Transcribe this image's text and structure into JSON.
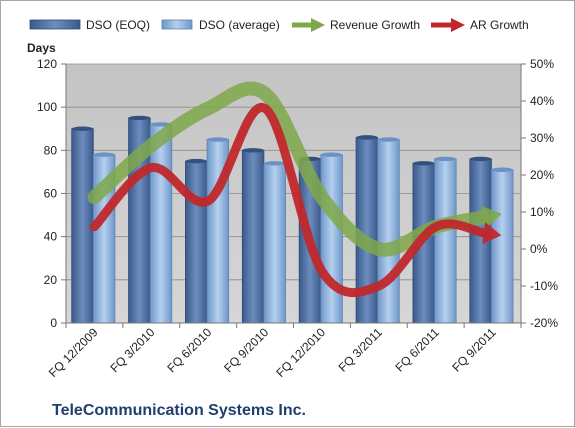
{
  "chart_data": {
    "type": "bar",
    "categories": [
      "FQ 12/2009",
      "FQ 3/2010",
      "FQ 6/2010",
      "FQ 9/2010",
      "FQ 12/2010",
      "FQ 3/2011",
      "FQ 6/2011",
      "FQ 9/2011"
    ],
    "series": [
      {
        "name": "DSO (EOQ)",
        "type": "bar",
        "axis": "left",
        "color": "#4f6fa3",
        "values": [
          90,
          95,
          75,
          80,
          76,
          86,
          74,
          76
        ]
      },
      {
        "name": "DSO (average)",
        "type": "bar",
        "axis": "left",
        "color": "#8eb4e3",
        "values": [
          78,
          92,
          85,
          74,
          78,
          85,
          76,
          71
        ]
      },
      {
        "name": "Revenue Growth",
        "type": "line",
        "axis": "right",
        "color": "#7fa84a",
        "values": [
          0.14,
          0.28,
          0.38,
          0.42,
          0.14,
          0.0,
          0.06,
          0.09
        ]
      },
      {
        "name": "AR Growth",
        "type": "line",
        "axis": "right",
        "color": "#c0282b",
        "values": [
          0.06,
          0.22,
          0.13,
          0.38,
          -0.06,
          -0.1,
          0.06,
          0.04
        ]
      }
    ],
    "ylabel": "Days",
    "ylim": [
      0,
      120
    ],
    "yticks": [
      "0",
      "20",
      "40",
      "60",
      "80",
      "100",
      "120"
    ],
    "y2lim": [
      -0.2,
      0.5
    ],
    "y2ticks": [
      "-20%",
      "-10%",
      "0%",
      "10%",
      "20%",
      "30%",
      "40%",
      "50%"
    ],
    "grid": true,
    "legend": "top"
  },
  "footer": {
    "company": "TeleCommunication Systems Inc."
  }
}
